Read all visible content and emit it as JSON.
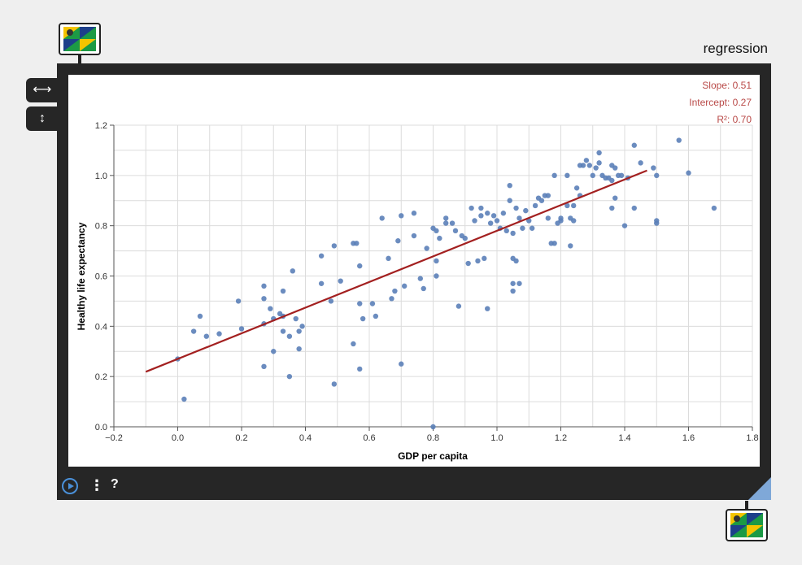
{
  "window": {
    "title": "regression",
    "resize_horizontal_icon": "horizontal-arrows-icon",
    "resize_vertical_icon": "vertical-arrows-icon",
    "node_icon": "tile-thumbnail-icon"
  },
  "toolbar": {
    "play_icon": "play-icon",
    "menu_label": "⋮",
    "help_label": "?"
  },
  "stats": {
    "slope": "Slope: 0.51",
    "intercept": "Intercept: 0.27",
    "r2": "R²: 0.70"
  },
  "colors": {
    "points": "#5b7fb8",
    "regression_line": "#a32020",
    "stats_text": "#b94a48",
    "frame": "#262626"
  },
  "chart_data": {
    "type": "scatter",
    "xlabel": "GDP per capita",
    "ylabel": "Healthy life expectancy",
    "xlim": [
      -0.2,
      1.8
    ],
    "ylim": [
      0,
      1.2
    ],
    "xticks": [
      "−0.2",
      "0.0",
      "0.2",
      "0.4",
      "0.6",
      "0.8",
      "1.0",
      "1.2",
      "1.4",
      "1.6",
      "1.8"
    ],
    "yticks": [
      "0.0",
      "0.2",
      "0.4",
      "0.6",
      "0.8",
      "1.0",
      "1.2"
    ],
    "grid": true,
    "regression": {
      "slope": 0.51,
      "intercept": 0.27,
      "r2": 0.7,
      "x_range": [
        -0.1,
        1.47
      ]
    },
    "points": [
      [
        0.0,
        0.27
      ],
      [
        0.02,
        0.11
      ],
      [
        0.05,
        0.38
      ],
      [
        0.07,
        0.44
      ],
      [
        0.09,
        0.36
      ],
      [
        0.13,
        0.37
      ],
      [
        0.19,
        0.5
      ],
      [
        0.2,
        0.39
      ],
      [
        0.27,
        0.56
      ],
      [
        0.27,
        0.51
      ],
      [
        0.27,
        0.41
      ],
      [
        0.27,
        0.24
      ],
      [
        0.29,
        0.47
      ],
      [
        0.3,
        0.43
      ],
      [
        0.3,
        0.3
      ],
      [
        0.32,
        0.45
      ],
      [
        0.33,
        0.38
      ],
      [
        0.33,
        0.44
      ],
      [
        0.33,
        0.54
      ],
      [
        0.35,
        0.36
      ],
      [
        0.35,
        0.2
      ],
      [
        0.36,
        0.62
      ],
      [
        0.37,
        0.43
      ],
      [
        0.38,
        0.38
      ],
      [
        0.38,
        0.31
      ],
      [
        0.39,
        0.4
      ],
      [
        0.45,
        0.68
      ],
      [
        0.45,
        0.57
      ],
      [
        0.48,
        0.5
      ],
      [
        0.49,
        0.72
      ],
      [
        0.49,
        0.17
      ],
      [
        0.51,
        0.58
      ],
      [
        0.55,
        0.73
      ],
      [
        0.55,
        0.33
      ],
      [
        0.56,
        0.73
      ],
      [
        0.57,
        0.49
      ],
      [
        0.57,
        0.23
      ],
      [
        0.57,
        0.64
      ],
      [
        0.58,
        0.43
      ],
      [
        0.61,
        0.49
      ],
      [
        0.62,
        0.44
      ],
      [
        0.64,
        0.83
      ],
      [
        0.66,
        0.67
      ],
      [
        0.67,
        0.51
      ],
      [
        0.68,
        0.54
      ],
      [
        0.69,
        0.74
      ],
      [
        0.7,
        0.84
      ],
      [
        0.7,
        0.25
      ],
      [
        0.71,
        0.56
      ],
      [
        0.74,
        0.85
      ],
      [
        0.74,
        0.76
      ],
      [
        0.76,
        0.59
      ],
      [
        0.77,
        0.55
      ],
      [
        0.78,
        0.71
      ],
      [
        0.8,
        0.79
      ],
      [
        0.81,
        0.78
      ],
      [
        0.81,
        0.66
      ],
      [
        0.81,
        0.6
      ],
      [
        0.82,
        0.75
      ],
      [
        0.84,
        0.83
      ],
      [
        0.84,
        0.81
      ],
      [
        0.86,
        0.81
      ],
      [
        0.87,
        0.78
      ],
      [
        0.88,
        0.48
      ],
      [
        0.89,
        0.76
      ],
      [
        0.9,
        0.75
      ],
      [
        0.91,
        0.65
      ],
      [
        0.92,
        0.87
      ],
      [
        0.93,
        0.82
      ],
      [
        0.94,
        0.66
      ],
      [
        0.95,
        0.84
      ],
      [
        0.95,
        0.87
      ],
      [
        0.96,
        0.67
      ],
      [
        0.97,
        0.85
      ],
      [
        0.97,
        0.47
      ],
      [
        0.98,
        0.81
      ],
      [
        0.99,
        0.84
      ],
      [
        1.0,
        0.82
      ],
      [
        1.01,
        0.79
      ],
      [
        1.02,
        0.85
      ],
      [
        1.03,
        0.78
      ],
      [
        1.04,
        0.9
      ],
      [
        1.04,
        0.96
      ],
      [
        1.05,
        0.77
      ],
      [
        1.05,
        0.67
      ],
      [
        1.05,
        0.57
      ],
      [
        1.05,
        0.54
      ],
      [
        1.06,
        0.66
      ],
      [
        1.06,
        0.87
      ],
      [
        1.07,
        0.57
      ],
      [
        1.07,
        0.83
      ],
      [
        1.08,
        0.79
      ],
      [
        1.09,
        0.86
      ],
      [
        1.1,
        0.82
      ],
      [
        1.11,
        0.79
      ],
      [
        1.12,
        0.88
      ],
      [
        1.13,
        0.91
      ],
      [
        1.14,
        0.9
      ],
      [
        1.15,
        0.92
      ],
      [
        1.16,
        0.92
      ],
      [
        1.16,
        0.83
      ],
      [
        1.17,
        0.73
      ],
      [
        1.18,
        1.0
      ],
      [
        1.18,
        0.73
      ],
      [
        1.19,
        0.81
      ],
      [
        1.2,
        0.82
      ],
      [
        1.2,
        0.83
      ],
      [
        1.22,
        0.88
      ],
      [
        1.22,
        1.0
      ],
      [
        1.23,
        0.83
      ],
      [
        1.23,
        0.72
      ],
      [
        1.24,
        0.82
      ],
      [
        1.24,
        0.88
      ],
      [
        1.25,
        0.95
      ],
      [
        1.26,
        1.04
      ],
      [
        1.26,
        0.92
      ],
      [
        1.27,
        1.04
      ],
      [
        1.28,
        1.06
      ],
      [
        1.29,
        1.04
      ],
      [
        1.3,
        1.0
      ],
      [
        1.31,
        1.03
      ],
      [
        1.32,
        1.05
      ],
      [
        1.32,
        1.09
      ],
      [
        1.33,
        1.0
      ],
      [
        1.34,
        0.99
      ],
      [
        1.35,
        0.99
      ],
      [
        1.36,
        1.04
      ],
      [
        1.36,
        0.98
      ],
      [
        1.36,
        0.87
      ],
      [
        1.37,
        0.91
      ],
      [
        1.37,
        1.03
      ],
      [
        1.38,
        1.0
      ],
      [
        1.39,
        1.0
      ],
      [
        1.4,
        0.8
      ],
      [
        1.41,
        0.99
      ],
      [
        1.43,
        0.87
      ],
      [
        1.43,
        1.12
      ],
      [
        1.45,
        1.05
      ],
      [
        1.49,
        1.03
      ],
      [
        1.5,
        1.0
      ],
      [
        1.5,
        0.81
      ],
      [
        1.5,
        0.82
      ],
      [
        1.57,
        1.14
      ],
      [
        1.6,
        1.01
      ],
      [
        1.68,
        0.87
      ],
      [
        0.8,
        0.0
      ]
    ]
  }
}
